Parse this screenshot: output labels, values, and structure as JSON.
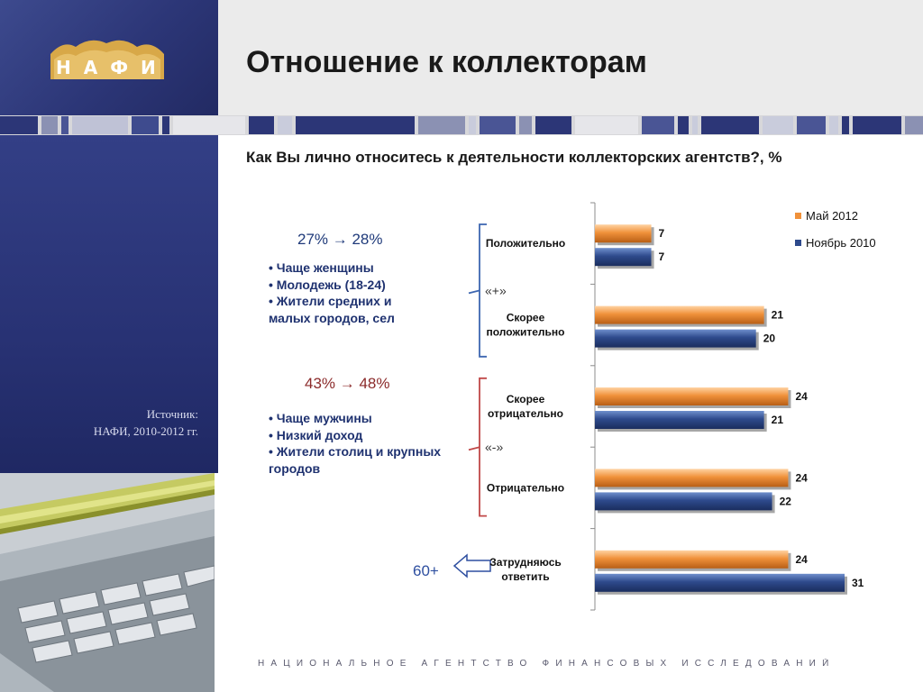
{
  "header": {
    "logo_text": "НАФИ",
    "title": "Отношение к коллекторам"
  },
  "sidebar": {
    "source_label": "Источник:",
    "source_value": "НАФИ, 2010-2012 гг."
  },
  "question": "Как Вы лично относитесь к деятельности коллекторских агентств?, %",
  "positive_block": {
    "change": "27% → 28%",
    "bullets": [
      "Чаще женщины",
      "Молодежь (18-24)",
      "Жители средних и",
      "малых городов, сел"
    ]
  },
  "negative_block": {
    "change": "43% → 48%",
    "bullets": [
      "Чаще мужчины",
      "Низкий доход",
      "Жители столиц и крупных",
      "городов"
    ]
  },
  "more_60": "60+",
  "colors": {
    "brand_navy": "#2c3677",
    "may_2012": "#f0913a",
    "nov_2010": "#2e4a8c",
    "positive_bracket": "#3d66b0",
    "negative_bracket": "#c04848"
  },
  "chart_data": {
    "type": "bar",
    "orientation": "horizontal",
    "categories": [
      [
        "Положительно"
      ],
      [
        "Скорее",
        "положительно"
      ],
      [
        "Скорее",
        "отрицательно"
      ],
      [
        "Отрицательно"
      ],
      [
        "Затрудняюсь",
        "ответить"
      ]
    ],
    "series": [
      {
        "name": "Май 2012",
        "color": "#f0913a",
        "values": [
          7,
          21,
          24,
          24,
          24
        ]
      },
      {
        "name": "Ноябрь 2010",
        "color": "#2e4a8c",
        "values": [
          7,
          20,
          21,
          22,
          31
        ]
      }
    ],
    "group_labels": {
      "positive": "«+»",
      "negative": "«-»"
    },
    "legend_position": "top-right",
    "xlim": [
      0,
      31
    ]
  },
  "footer": "НАЦИОНАЛЬНОЕ АГЕНТСТВО ФИНАНСОВЫХ ИССЛЕДОВАНИЙ"
}
